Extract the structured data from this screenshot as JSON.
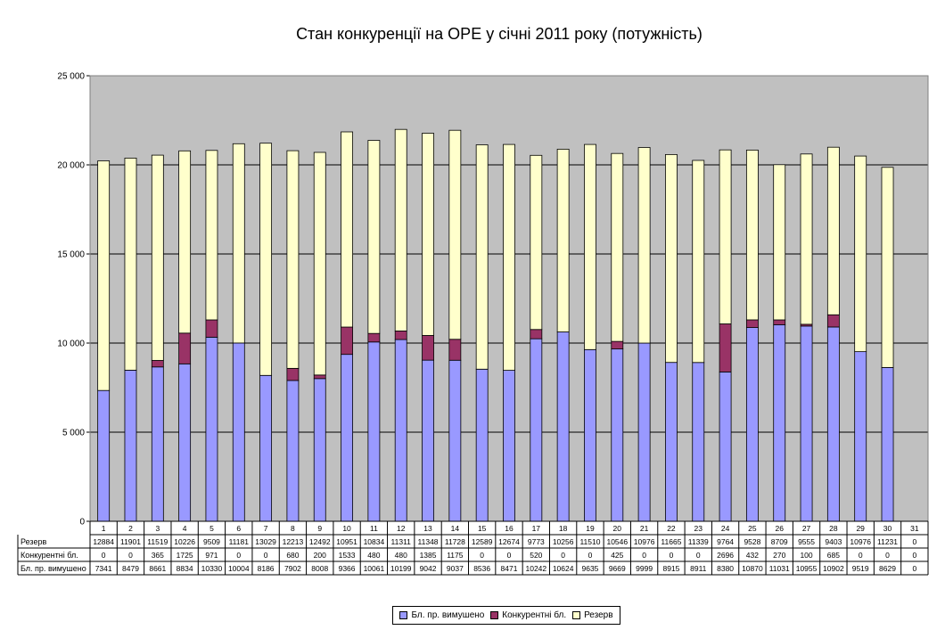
{
  "chart_data": {
    "type": "bar",
    "stacked": true,
    "title": "Стан конкуренції на ОРЕ  у січні 2011 року (потужність)",
    "categories": [
      "1",
      "2",
      "3",
      "4",
      "5",
      "6",
      "7",
      "8",
      "9",
      "10",
      "11",
      "12",
      "13",
      "14",
      "15",
      "16",
      "17",
      "18",
      "19",
      "20",
      "21",
      "22",
      "23",
      "24",
      "25",
      "26",
      "27",
      "28",
      "29",
      "30",
      "31"
    ],
    "ylim": [
      0,
      25000
    ],
    "yticks": [
      0,
      5000,
      10000,
      15000,
      20000,
      25000
    ],
    "ytick_labels": [
      "0",
      "5 000",
      "10 000",
      "15 000",
      "20 000",
      "25 000"
    ],
    "grid": true,
    "legend_position": "bottom",
    "has_data_table": true,
    "series": [
      {
        "name": "Бл. пр. вимушено",
        "color": "#9999ff",
        "values": [
          7341,
          8479,
          8661,
          8834,
          10330,
          10004,
          8186,
          7902,
          8008,
          9366,
          10061,
          10199,
          9042,
          9037,
          8536,
          8471,
          10242,
          10624,
          9635,
          9669,
          9999,
          8915,
          8911,
          8380,
          10870,
          11031,
          10955,
          10902,
          9519,
          8629,
          0
        ]
      },
      {
        "name": "Конкурентні бл.",
        "color": "#993366",
        "values": [
          0,
          0,
          365,
          1725,
          971,
          0,
          0,
          680,
          200,
          1533,
          480,
          480,
          1385,
          1175,
          0,
          0,
          520,
          0,
          0,
          425,
          0,
          0,
          0,
          2696,
          432,
          270,
          100,
          685,
          0,
          0,
          0
        ]
      },
      {
        "name": "Резерв",
        "color": "#ffffcc",
        "values": [
          12884,
          11901,
          11519,
          10226,
          9509,
          11181,
          13029,
          12213,
          12492,
          10951,
          10834,
          11311,
          11348,
          11728,
          12589,
          12674,
          9773,
          10256,
          11510,
          10546,
          10976,
          11665,
          11339,
          9764,
          9528,
          8709,
          9555,
          9403,
          10976,
          11231,
          0
        ]
      }
    ],
    "table_row_order": [
      "Резерв",
      "Конкурентні бл.",
      "Бл. пр. вимушено"
    ],
    "legend_order": [
      "Бл. пр. вимушено",
      "Конкурентні бл.",
      "Резерв"
    ]
  }
}
